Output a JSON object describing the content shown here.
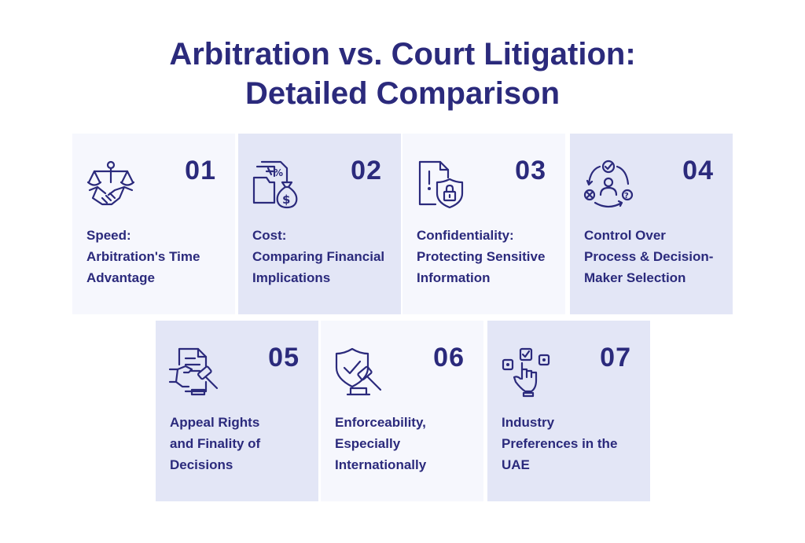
{
  "title": {
    "line1": "Arbitration vs. Court Litigation:",
    "line2": "Detailed Comparison"
  },
  "cards": [
    {
      "number": "01",
      "icon": "scales-handshake-icon",
      "lines": [
        "Speed:",
        "Arbitration's Time",
        "Advantage"
      ]
    },
    {
      "number": "02",
      "icon": "money-bag-documents-icon",
      "lines": [
        "Cost:",
        "Comparing Financial",
        "Implications"
      ]
    },
    {
      "number": "03",
      "icon": "document-lock-shield-icon",
      "lines": [
        "Confidentiality:",
        "Protecting Sensitive",
        "Information"
      ]
    },
    {
      "number": "04",
      "icon": "person-cycle-decision-icon",
      "lines": [
        "Control Over",
        "Process & Decision-",
        "Maker Selection"
      ]
    },
    {
      "number": "05",
      "icon": "document-gavel-icon",
      "lines": [
        "Appeal Rights",
        "and Finality of",
        "Decisions"
      ]
    },
    {
      "number": "06",
      "icon": "shield-gavel-icon",
      "lines": [
        "Enforceability,",
        "Especially",
        "Internationally"
      ]
    },
    {
      "number": "07",
      "icon": "hand-checkbox-icon",
      "lines": [
        "Industry",
        "Preferences in the",
        "UAE"
      ]
    }
  ],
  "colors": {
    "primary": "#2b2a7c",
    "card_light": "#f6f7fd",
    "card_dark": "#e3e6f6"
  }
}
